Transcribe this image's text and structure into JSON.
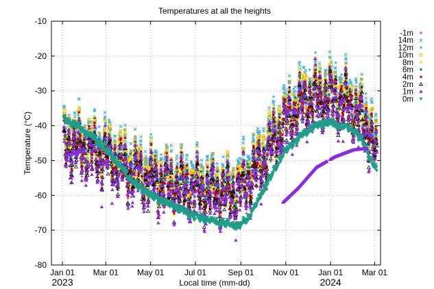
{
  "chart_data": {
    "type": "scatter",
    "title": "Temperatures at all the heights",
    "xlabel": "Local time (mm-dd)",
    "ylabel": "Temperature (°C)",
    "x_unit": "days since 2023-01-01",
    "xlim": [
      -15,
      433
    ],
    "ylim": [
      -80,
      -10
    ],
    "yticks": [
      -80,
      -70,
      -60,
      -50,
      -40,
      -30,
      -20,
      -10
    ],
    "xticks": [
      {
        "day": 0,
        "label": "Jan 01"
      },
      {
        "day": 59,
        "label": "Mar 01"
      },
      {
        "day": 120,
        "label": "May 01"
      },
      {
        "day": 181,
        "label": "Jul 01"
      },
      {
        "day": 243,
        "label": "Sep 01"
      },
      {
        "day": 304,
        "label": "Nov 01"
      },
      {
        "day": 365,
        "label": "Jan 01"
      },
      {
        "day": 425,
        "label": "Mar 01"
      }
    ],
    "year_labels": [
      {
        "day": 0,
        "label": "2023"
      },
      {
        "day": 365,
        "label": "2024"
      }
    ],
    "grid": true,
    "legend_position": "right",
    "series": [
      {
        "name": "-1m",
        "color": "#e6194b",
        "marker": "plus",
        "offset": 0.5,
        "spread": 0.55,
        "trend": [
          [
            2,
            -47
          ],
          [
            30,
            -48
          ],
          [
            60,
            -50
          ],
          [
            80,
            -53
          ],
          [
            120,
            -57
          ],
          [
            160,
            -59
          ],
          [
            200,
            -60
          ],
          [
            235,
            -62
          ],
          [
            270,
            -54
          ],
          [
            300,
            -42
          ],
          [
            330,
            -35
          ],
          [
            365,
            -33
          ],
          [
            395,
            -36
          ],
          [
            420,
            -43
          ],
          [
            428,
            -52
          ]
        ]
      },
      {
        "name": "14m",
        "color": "#2aa0cc",
        "marker": "x",
        "offset": 2.2,
        "spread": 0.6,
        "trend": [
          [
            2,
            -43
          ],
          [
            30,
            -45
          ],
          [
            60,
            -47
          ],
          [
            80,
            -50
          ],
          [
            120,
            -54
          ],
          [
            160,
            -56
          ],
          [
            200,
            -57
          ],
          [
            235,
            -58
          ],
          [
            270,
            -49
          ],
          [
            300,
            -38
          ],
          [
            330,
            -31
          ],
          [
            365,
            -30
          ],
          [
            395,
            -33
          ],
          [
            420,
            -40
          ],
          [
            428,
            -49
          ]
        ]
      },
      {
        "name": "12m",
        "color": "#41b6e6",
        "marker": "asterisk",
        "offset": 1.9,
        "spread": 0.6,
        "trend": [
          [
            2,
            -43
          ],
          [
            30,
            -45
          ],
          [
            60,
            -47
          ],
          [
            80,
            -50
          ],
          [
            120,
            -54
          ],
          [
            160,
            -56
          ],
          [
            200,
            -57
          ],
          [
            235,
            -58
          ],
          [
            270,
            -49
          ],
          [
            300,
            -38
          ],
          [
            330,
            -31
          ],
          [
            365,
            -30
          ],
          [
            395,
            -33
          ],
          [
            420,
            -40
          ],
          [
            428,
            -49
          ]
        ]
      },
      {
        "name": "10m",
        "color": "#f0a800",
        "marker": "square",
        "offset": 1.5,
        "spread": 0.6,
        "trend": [
          [
            2,
            -44
          ],
          [
            30,
            -46
          ],
          [
            60,
            -48
          ],
          [
            80,
            -51
          ],
          [
            120,
            -55
          ],
          [
            160,
            -57
          ],
          [
            200,
            -58
          ],
          [
            235,
            -59
          ],
          [
            270,
            -50
          ],
          [
            300,
            -39
          ],
          [
            330,
            -32
          ],
          [
            365,
            -31
          ],
          [
            395,
            -34
          ],
          [
            420,
            -41
          ],
          [
            428,
            -50
          ]
        ]
      },
      {
        "name": "8m",
        "color": "#f7e017",
        "marker": "diamond",
        "offset": 1.2,
        "spread": 0.6,
        "trend": [
          [
            2,
            -44
          ],
          [
            30,
            -46
          ],
          [
            60,
            -48
          ],
          [
            80,
            -51
          ],
          [
            120,
            -55
          ],
          [
            160,
            -57
          ],
          [
            200,
            -58
          ],
          [
            235,
            -59
          ],
          [
            270,
            -50
          ],
          [
            300,
            -39
          ],
          [
            330,
            -32
          ],
          [
            365,
            -31
          ],
          [
            395,
            -34
          ],
          [
            420,
            -41
          ],
          [
            428,
            -50
          ]
        ]
      },
      {
        "name": "6m",
        "color": "#1f6f9f",
        "marker": "dot",
        "offset": 0.9,
        "spread": 0.6,
        "trend": [
          [
            2,
            -45
          ],
          [
            30,
            -47
          ],
          [
            60,
            -49
          ],
          [
            80,
            -52
          ],
          [
            120,
            -56
          ],
          [
            160,
            -58
          ],
          [
            200,
            -59
          ],
          [
            235,
            -60
          ],
          [
            270,
            -51
          ],
          [
            300,
            -40
          ],
          [
            330,
            -33
          ],
          [
            365,
            -32
          ],
          [
            395,
            -35
          ],
          [
            420,
            -42
          ],
          [
            428,
            -51
          ]
        ]
      },
      {
        "name": "4m",
        "color": "#c00000",
        "marker": "dot",
        "offset": 0.6,
        "spread": 0.6,
        "trend": [
          [
            2,
            -45
          ],
          [
            30,
            -47
          ],
          [
            60,
            -49
          ],
          [
            80,
            -52
          ],
          [
            120,
            -56
          ],
          [
            160,
            -58
          ],
          [
            200,
            -59
          ],
          [
            235,
            -60
          ],
          [
            270,
            -51
          ],
          [
            300,
            -40
          ],
          [
            330,
            -33
          ],
          [
            365,
            -32
          ],
          [
            395,
            -35
          ],
          [
            420,
            -42
          ],
          [
            428,
            -51
          ]
        ]
      },
      {
        "name": "2m",
        "color": "#000000",
        "marker": "triangle-open",
        "offset": 0.3,
        "spread": 0.6,
        "trend": [
          [
            2,
            -46
          ],
          [
            30,
            -48
          ],
          [
            60,
            -50
          ],
          [
            80,
            -53
          ],
          [
            120,
            -57
          ],
          [
            160,
            -59
          ],
          [
            200,
            -60
          ],
          [
            235,
            -61
          ],
          [
            270,
            -52
          ],
          [
            300,
            -41
          ],
          [
            330,
            -34
          ],
          [
            365,
            -33
          ],
          [
            395,
            -36
          ],
          [
            420,
            -43
          ],
          [
            428,
            -52
          ]
        ]
      },
      {
        "name": "1m",
        "color": "#8b2be2",
        "marker": "triangle",
        "offset": 0.0,
        "spread": 0.7,
        "trend": [
          [
            2,
            -46
          ],
          [
            30,
            -48
          ],
          [
            60,
            -50
          ],
          [
            80,
            -53
          ],
          [
            120,
            -57
          ],
          [
            160,
            -59
          ],
          [
            200,
            -60
          ],
          [
            235,
            -61
          ],
          [
            270,
            -52
          ],
          [
            300,
            -41
          ],
          [
            330,
            -34
          ],
          [
            365,
            -33
          ],
          [
            395,
            -36
          ],
          [
            420,
            -43
          ],
          [
            428,
            -52
          ]
        ]
      },
      {
        "name": "0m",
        "color": "#1f9e89",
        "marker": "triangle-down",
        "offset": 0.0,
        "spread": 0.2,
        "trend": [
          [
            2,
            -38
          ],
          [
            20,
            -40
          ],
          [
            40,
            -43
          ],
          [
            60,
            -47
          ],
          [
            80,
            -52
          ],
          [
            100,
            -57
          ],
          [
            120,
            -60
          ],
          [
            140,
            -62
          ],
          [
            160,
            -64
          ],
          [
            180,
            -66
          ],
          [
            200,
            -67
          ],
          [
            220,
            -68
          ],
          [
            240,
            -69
          ],
          [
            255,
            -66
          ],
          [
            270,
            -60
          ],
          [
            290,
            -52
          ],
          [
            300,
            -48
          ],
          [
            315,
            -45
          ],
          [
            330,
            -42
          ],
          [
            345,
            -40
          ],
          [
            360,
            -39
          ],
          [
            375,
            -40
          ],
          [
            395,
            -41
          ],
          [
            410,
            -45
          ],
          [
            420,
            -50
          ],
          [
            428,
            -53
          ]
        ]
      }
    ],
    "deep_layer_trend": {
      "series": "1m",
      "points": [
        [
          5,
          -48.5
        ],
        [
          25,
          -47.5
        ],
        [
          300,
          -62
        ],
        [
          320,
          -58
        ],
        [
          345,
          -52
        ],
        [
          370,
          -49
        ],
        [
          395,
          -47
        ],
        [
          415,
          -46.5
        ]
      ]
    }
  }
}
